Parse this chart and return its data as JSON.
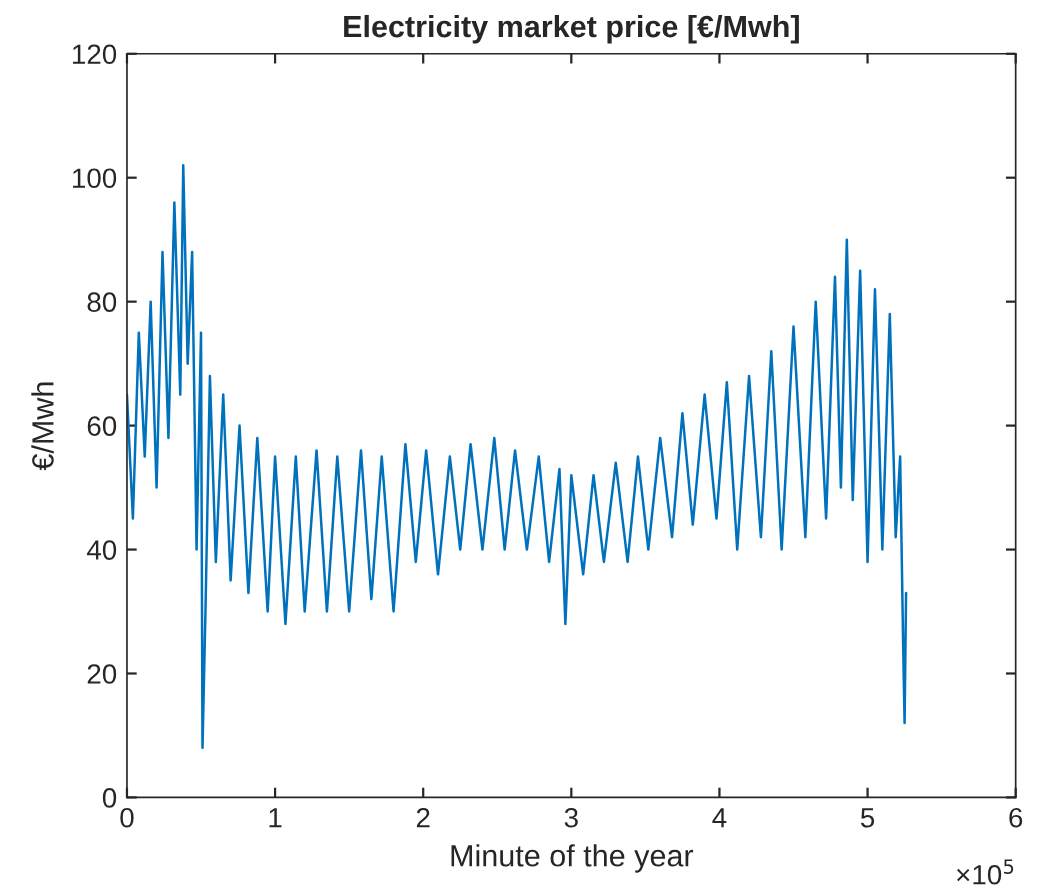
{
  "chart_data": {
    "type": "line",
    "title": "Electricity market price [€/Mwh]",
    "xlabel": "Minute of the year",
    "ylabel": "€/Mwh",
    "xlim": [
      0,
      6
    ],
    "xticks": [
      0,
      1,
      2,
      3,
      4,
      5,
      6
    ],
    "ylim": [
      0,
      120
    ],
    "yticks": [
      0,
      20,
      40,
      60,
      80,
      100,
      120
    ],
    "grid": false,
    "annotations": [
      "×10$^{5}$"
    ],
    "series": [
      {
        "color": "#0072bd",
        "x": [
          0,
          0.04,
          0.08,
          0.12,
          0.16,
          0.2,
          0.24,
          0.28,
          0.32,
          0.36,
          0.38,
          0.41,
          0.44,
          0.47,
          0.5,
          0.51,
          0.53,
          0.56,
          0.6,
          0.65,
          0.7,
          0.76,
          0.82,
          0.88,
          0.95,
          1.0,
          1.07,
          1.14,
          1.2,
          1.28,
          1.35,
          1.42,
          1.5,
          1.58,
          1.65,
          1.72,
          1.8,
          1.88,
          1.95,
          2.02,
          2.1,
          2.18,
          2.25,
          2.32,
          2.4,
          2.48,
          2.55,
          2.62,
          2.7,
          2.78,
          2.85,
          2.92,
          2.96,
          3.0,
          3.08,
          3.15,
          3.22,
          3.3,
          3.38,
          3.45,
          3.52,
          3.6,
          3.68,
          3.75,
          3.82,
          3.9,
          3.98,
          4.05,
          4.12,
          4.2,
          4.28,
          4.35,
          4.42,
          4.5,
          4.58,
          4.65,
          4.72,
          4.78,
          4.82,
          4.86,
          4.9,
          4.95,
          5.0,
          5.05,
          5.1,
          5.15,
          5.19,
          5.22,
          5.24,
          5.25,
          5.26
        ],
        "values": [
          65,
          45,
          75,
          55,
          80,
          50,
          88,
          58,
          96,
          65,
          102,
          70,
          88,
          40,
          75,
          8,
          30,
          68,
          38,
          65,
          35,
          60,
          33,
          58,
          30,
          55,
          28,
          55,
          30,
          56,
          30,
          55,
          30,
          56,
          32,
          55,
          30,
          57,
          38,
          56,
          36,
          55,
          40,
          57,
          40,
          58,
          40,
          56,
          40,
          55,
          38,
          53,
          28,
          52,
          36,
          52,
          38,
          54,
          38,
          55,
          40,
          58,
          42,
          62,
          44,
          65,
          45,
          67,
          40,
          68,
          42,
          72,
          40,
          76,
          42,
          80,
          45,
          84,
          50,
          90,
          48,
          85,
          38,
          82,
          40,
          78,
          42,
          55,
          25,
          12,
          33
        ]
      }
    ]
  }
}
